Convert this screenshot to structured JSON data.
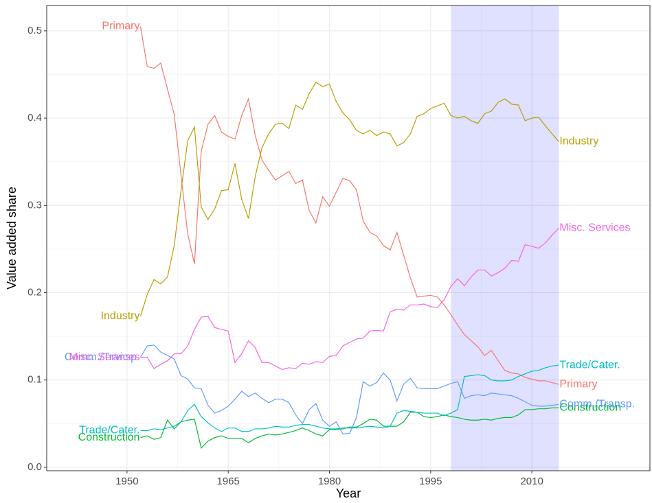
{
  "chart_data": {
    "type": "line",
    "xlabel": "Year",
    "ylabel": "Value added share",
    "xlim": [
      1938.1,
      2027.5
    ],
    "xticks": [
      1950,
      1965,
      1980,
      1995,
      2010
    ],
    "ylim": [
      -0.004,
      0.529
    ],
    "yticks": [
      {
        "value": 0,
        "label": "0.0"
      },
      0.1,
      0.2,
      0.3,
      0.4,
      0.5
    ],
    "grid": true,
    "highlight": [
      1998,
      2014
    ],
    "highlight_color": "#0000ff",
    "x": [
      1952,
      1953,
      1954,
      1955,
      1956,
      1957,
      1958,
      1959,
      1960,
      1961,
      1962,
      1963,
      1964,
      1965,
      1966,
      1967,
      1968,
      1969,
      1970,
      1971,
      1972,
      1973,
      1974,
      1975,
      1976,
      1977,
      1978,
      1979,
      1980,
      1981,
      1982,
      1983,
      1984,
      1985,
      1986,
      1987,
      1988,
      1989,
      1990,
      1991,
      1992,
      1993,
      1994,
      1995,
      1996,
      1997,
      1998,
      1999,
      2000,
      2001,
      2002,
      2003,
      2004,
      2005,
      2006,
      2007,
      2008,
      2009,
      2010,
      2011,
      2012,
      2013,
      2014
    ],
    "series": [
      {
        "name": "Primary",
        "color": "#F8766D",
        "values": [
          0.505,
          0.459,
          0.457,
          0.463,
          0.433,
          0.404,
          0.335,
          0.267,
          0.233,
          0.362,
          0.393,
          0.403,
          0.384,
          0.379,
          0.376,
          0.403,
          0.422,
          0.38,
          0.352,
          0.34,
          0.329,
          0.334,
          0.339,
          0.325,
          0.329,
          0.294,
          0.28,
          0.31,
          0.299,
          0.315,
          0.331,
          0.328,
          0.318,
          0.282,
          0.269,
          0.265,
          0.254,
          0.249,
          0.269,
          0.243,
          0.217,
          0.195,
          0.196,
          0.197,
          0.195,
          0.186,
          0.175,
          0.163,
          0.152,
          0.145,
          0.138,
          0.128,
          0.134,
          0.122,
          0.111,
          0.108,
          0.107,
          0.103,
          0.101,
          0.099,
          0.099,
          0.097,
          0.095
        ]
      },
      {
        "name": "Industry",
        "color": "#B79F00",
        "values": [
          0.173,
          0.198,
          0.215,
          0.21,
          0.218,
          0.254,
          0.317,
          0.374,
          0.39,
          0.298,
          0.284,
          0.296,
          0.317,
          0.318,
          0.348,
          0.307,
          0.285,
          0.333,
          0.366,
          0.382,
          0.393,
          0.394,
          0.388,
          0.415,
          0.41,
          0.428,
          0.441,
          0.436,
          0.439,
          0.419,
          0.406,
          0.398,
          0.386,
          0.382,
          0.386,
          0.38,
          0.384,
          0.382,
          0.368,
          0.372,
          0.382,
          0.402,
          0.405,
          0.411,
          0.414,
          0.417,
          0.403,
          0.4,
          0.402,
          0.397,
          0.394,
          0.405,
          0.408,
          0.418,
          0.422,
          0.416,
          0.415,
          0.397,
          0.4,
          0.401,
          0.391,
          0.382,
          0.373
        ]
      },
      {
        "name": "Construction",
        "color": "#00BA38",
        "values": [
          0.034,
          0.036,
          0.032,
          0.034,
          0.054,
          0.044,
          0.052,
          0.054,
          0.055,
          0.022,
          0.03,
          0.034,
          0.036,
          0.033,
          0.033,
          0.033,
          0.028,
          0.033,
          0.036,
          0.038,
          0.037,
          0.038,
          0.04,
          0.042,
          0.045,
          0.042,
          0.038,
          0.036,
          0.043,
          0.043,
          0.044,
          0.046,
          0.046,
          0.05,
          0.055,
          0.054,
          0.047,
          0.047,
          0.047,
          0.052,
          0.063,
          0.063,
          0.058,
          0.057,
          0.058,
          0.06,
          0.058,
          0.057,
          0.055,
          0.054,
          0.054,
          0.055,
          0.054,
          0.056,
          0.057,
          0.057,
          0.06,
          0.066,
          0.066,
          0.067,
          0.067,
          0.068,
          0.068
        ]
      },
      {
        "name": "Trade/Cater.",
        "color": "#00BFC4",
        "values": [
          0.042,
          0.042,
          0.044,
          0.043,
          0.045,
          0.047,
          0.052,
          0.065,
          0.072,
          0.058,
          0.051,
          0.045,
          0.041,
          0.045,
          0.045,
          0.041,
          0.041,
          0.044,
          0.044,
          0.045,
          0.047,
          0.046,
          0.046,
          0.048,
          0.049,
          0.049,
          0.047,
          0.045,
          0.044,
          0.044,
          0.045,
          0.045,
          0.045,
          0.046,
          0.047,
          0.046,
          0.045,
          0.047,
          0.062,
          0.065,
          0.064,
          0.063,
          0.062,
          0.062,
          0.062,
          0.059,
          0.062,
          0.066,
          0.104,
          0.105,
          0.106,
          0.105,
          0.1,
          0.099,
          0.099,
          0.1,
          0.104,
          0.107,
          0.11,
          0.111,
          0.114,
          0.116,
          0.117
        ]
      },
      {
        "name": "Comm./Transp.",
        "color": "#619CFF",
        "values": [
          0.126,
          0.139,
          0.14,
          0.132,
          0.128,
          0.124,
          0.105,
          0.101,
          0.091,
          0.09,
          0.071,
          0.062,
          0.065,
          0.07,
          0.078,
          0.087,
          0.081,
          0.085,
          0.079,
          0.074,
          0.078,
          0.078,
          0.074,
          0.06,
          0.05,
          0.066,
          0.073,
          0.054,
          0.047,
          0.052,
          0.038,
          0.039,
          0.057,
          0.098,
          0.093,
          0.097,
          0.108,
          0.1,
          0.076,
          0.095,
          0.102,
          0.091,
          0.09,
          0.09,
          0.09,
          0.093,
          0.096,
          0.098,
          0.079,
          0.082,
          0.083,
          0.082,
          0.085,
          0.084,
          0.083,
          0.082,
          0.079,
          0.075,
          0.071,
          0.07,
          0.07,
          0.071,
          0.072
        ]
      },
      {
        "name": "Misc. Services",
        "color": "#F564E3",
        "values": [
          0.126,
          0.126,
          0.113,
          0.118,
          0.122,
          0.13,
          0.13,
          0.139,
          0.158,
          0.172,
          0.173,
          0.16,
          0.158,
          0.156,
          0.12,
          0.13,
          0.145,
          0.137,
          0.12,
          0.12,
          0.116,
          0.112,
          0.114,
          0.113,
          0.119,
          0.118,
          0.121,
          0.12,
          0.127,
          0.128,
          0.139,
          0.143,
          0.147,
          0.148,
          0.156,
          0.157,
          0.156,
          0.178,
          0.181,
          0.18,
          0.186,
          0.186,
          0.187,
          0.184,
          0.183,
          0.192,
          0.207,
          0.216,
          0.208,
          0.218,
          0.226,
          0.226,
          0.219,
          0.223,
          0.228,
          0.237,
          0.236,
          0.255,
          0.253,
          0.251,
          0.257,
          0.266,
          0.274
        ]
      }
    ]
  }
}
